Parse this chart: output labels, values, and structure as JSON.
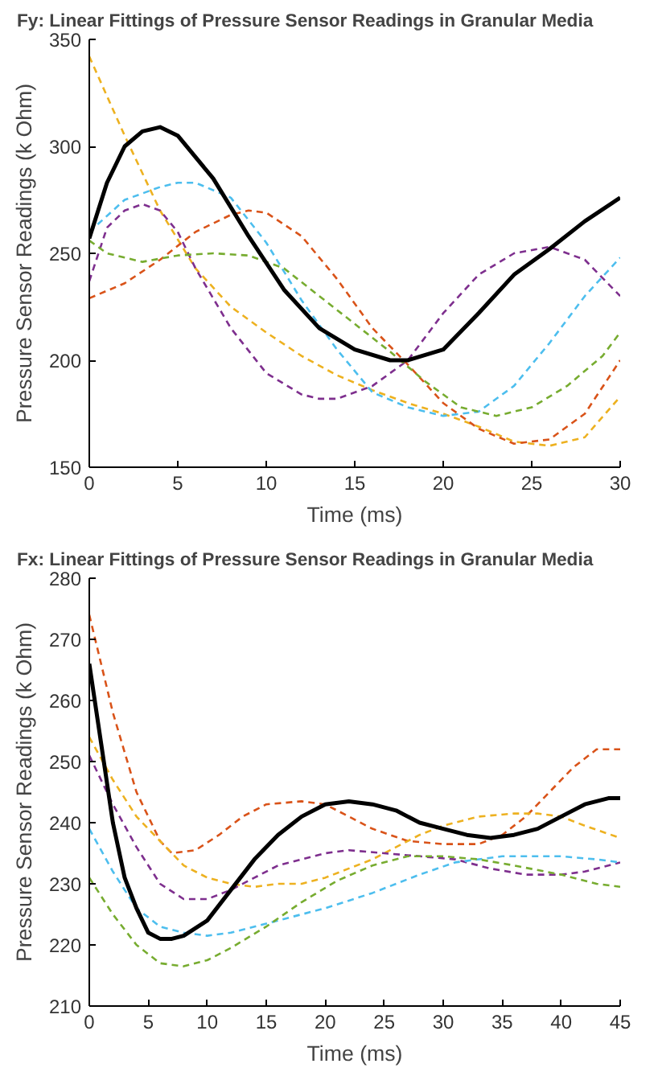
{
  "chart_data": [
    {
      "type": "line",
      "title": "Fy: Linear Fittings of Pressure Sensor Readings in Granular Media",
      "xlabel": "Time (ms)",
      "ylabel": "Pressure Sensor Readings (k Ohm)",
      "xlim": [
        0,
        30
      ],
      "ylim": [
        150,
        350
      ],
      "xticks": [
        0,
        5,
        10,
        15,
        20,
        25,
        30
      ],
      "yticks": [
        150,
        200,
        250,
        300,
        350
      ],
      "grid": false,
      "series": [
        {
          "color": "#edb120",
          "line_style": "dashed",
          "x": [
            0,
            2,
            4,
            6,
            8,
            10,
            12,
            14,
            16,
            18,
            20,
            22,
            24,
            26,
            28,
            30
          ],
          "values": [
            342,
            305,
            270,
            243,
            225,
            213,
            202,
            193,
            186,
            180,
            175,
            169,
            162,
            160,
            164,
            183
          ]
        },
        {
          "color": "#4dbeee",
          "line_style": "dashed",
          "x": [
            0,
            2,
            4,
            5,
            6,
            8,
            10,
            12,
            14,
            16,
            18,
            20,
            22,
            24,
            26,
            28,
            30
          ],
          "values": [
            260,
            275,
            281,
            283,
            283,
            276,
            255,
            228,
            205,
            185,
            178,
            174,
            176,
            188,
            208,
            230,
            248
          ]
        },
        {
          "color": "#7e2f8e",
          "line_style": "dashed",
          "x": [
            0,
            1,
            2,
            3,
            4,
            5,
            6,
            8,
            10,
            12,
            13,
            14,
            16,
            18,
            20,
            22,
            24,
            26,
            28,
            30
          ],
          "values": [
            237,
            262,
            270,
            273,
            270,
            260,
            243,
            215,
            194,
            184,
            182,
            182,
            188,
            200,
            222,
            240,
            250,
            253,
            247,
            230
          ]
        },
        {
          "color": "#d95319",
          "line_style": "dashed",
          "x": [
            0,
            2,
            4,
            6,
            8,
            9,
            10,
            12,
            14,
            16,
            18,
            20,
            22,
            24,
            26,
            28,
            30
          ],
          "values": [
            229,
            236,
            247,
            260,
            268,
            270,
            269,
            258,
            238,
            215,
            198,
            180,
            168,
            161,
            163,
            175,
            200
          ]
        },
        {
          "color": "#77ac30",
          "line_style": "dashed",
          "x": [
            0,
            1,
            2,
            3,
            5,
            7,
            9,
            11,
            13,
            15,
            17,
            19,
            21,
            23,
            25,
            27,
            29,
            30
          ],
          "values": [
            256,
            250,
            248,
            246,
            249,
            250,
            249,
            243,
            230,
            217,
            204,
            190,
            178,
            174,
            178,
            188,
            202,
            213
          ]
        },
        {
          "color": "#000000",
          "line_style": "solid",
          "x": [
            0,
            1,
            2,
            3,
            4,
            5,
            7,
            9,
            11,
            13,
            15,
            17,
            18,
            20,
            22,
            24,
            26,
            28,
            30
          ],
          "values": [
            257,
            283,
            300,
            307,
            309,
            305,
            285,
            258,
            233,
            215,
            205,
            200,
            200,
            205,
            222,
            240,
            252,
            265,
            276
          ]
        }
      ]
    },
    {
      "type": "line",
      "title": "Fx: Linear Fittings of Pressure Sensor Readings in Granular Media",
      "xlabel": "Time (ms)",
      "ylabel": "Pressure Sensor Readings (k Ohm)",
      "xlim": [
        0,
        45
      ],
      "ylim": [
        210,
        280
      ],
      "xticks": [
        0,
        5,
        10,
        15,
        20,
        25,
        30,
        35,
        40,
        45
      ],
      "yticks": [
        210,
        220,
        230,
        240,
        250,
        260,
        270,
        280
      ],
      "grid": false,
      "series": [
        {
          "color": "#d95319",
          "line_style": "dashed",
          "x": [
            0,
            2,
            4,
            6,
            7,
            9,
            11,
            13,
            15,
            18,
            20,
            22,
            24,
            27,
            30,
            33,
            35,
            37,
            39,
            41,
            43,
            45
          ],
          "values": [
            274,
            258,
            245,
            237,
            235,
            235.5,
            238,
            241,
            243,
            243.5,
            243,
            241,
            239,
            237,
            236.5,
            236.5,
            238,
            241,
            245,
            249,
            252,
            252
          ]
        },
        {
          "color": "#edb120",
          "line_style": "dashed",
          "x": [
            0,
            2,
            4,
            6,
            8,
            10,
            12,
            14,
            16,
            18,
            20,
            24,
            28,
            30,
            33,
            36,
            38,
            40,
            42,
            45
          ],
          "values": [
            254,
            247,
            241,
            237,
            233,
            231,
            230,
            229.5,
            230,
            230,
            231,
            234,
            238,
            239.5,
            241,
            241.5,
            241.5,
            241,
            239.5,
            237.5
          ]
        },
        {
          "color": "#7e2f8e",
          "line_style": "dashed",
          "x": [
            0,
            2,
            4,
            6,
            8,
            10,
            12,
            14,
            16,
            20,
            22,
            25,
            28,
            31,
            34,
            37,
            40,
            42,
            45
          ],
          "values": [
            251,
            243,
            236,
            230,
            227.5,
            227.5,
            229,
            231,
            233,
            235,
            235.5,
            235,
            234.5,
            234,
            232.5,
            231.5,
            231.5,
            232,
            233.5
          ]
        },
        {
          "color": "#4dbeee",
          "line_style": "dashed",
          "x": [
            0,
            2,
            4,
            6,
            8,
            10,
            12,
            15,
            18,
            20,
            24,
            28,
            31,
            35,
            40,
            43,
            45
          ],
          "values": [
            239,
            232,
            226,
            223,
            222,
            221.5,
            222,
            223.5,
            225,
            226,
            228.5,
            231.5,
            233.5,
            234.5,
            234.5,
            234,
            233.5
          ]
        },
        {
          "color": "#77ac30",
          "line_style": "dashed",
          "x": [
            0,
            2,
            4,
            6,
            8,
            10,
            12,
            15,
            18,
            21,
            24,
            27,
            30,
            33,
            36,
            40,
            43,
            45
          ],
          "values": [
            231,
            225,
            220,
            217,
            216.5,
            217.5,
            219.5,
            223,
            227,
            230.5,
            233,
            234.5,
            234.5,
            234,
            233,
            231.5,
            230,
            229.5
          ]
        },
        {
          "color": "#000000",
          "line_style": "solid",
          "x": [
            0,
            1,
            2,
            3,
            4,
            5,
            6,
            7,
            8,
            10,
            12,
            14,
            16,
            18,
            20,
            22,
            24,
            26,
            28,
            30,
            32,
            34,
            36,
            38,
            40,
            42,
            44,
            45
          ],
          "values": [
            266,
            253,
            240,
            231,
            226,
            222,
            221,
            221,
            221.5,
            224,
            229,
            234,
            238,
            241,
            243,
            243.5,
            243,
            242,
            240,
            239,
            238,
            237.5,
            238,
            239,
            241,
            243,
            244,
            244
          ]
        }
      ]
    }
  ]
}
